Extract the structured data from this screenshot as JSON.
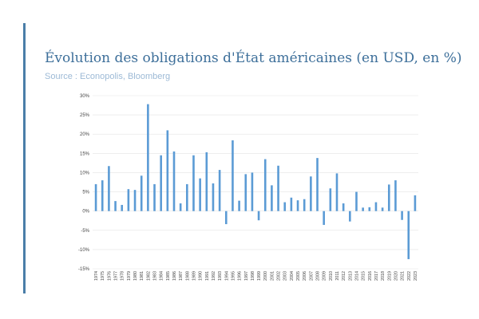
{
  "header": {
    "title": "Évolution des obligations d'État américaines (en USD, en %)",
    "subtitle": "Source : Econopolis, Bloomberg"
  },
  "colors": {
    "accent": "#4a7ea8",
    "title": "#3d6f9a",
    "subtitle": "#9dbad6",
    "bar": "#5b9bd5",
    "grid": "#e3e3e3",
    "tick_text": "#444444"
  },
  "chart_data": {
    "type": "bar",
    "title": "",
    "xlabel": "",
    "ylabel": "",
    "ylim": [
      -15,
      30
    ],
    "yticks": [
      30,
      25,
      20,
      15,
      10,
      5,
      0,
      -5,
      -10,
      -15
    ],
    "ytick_labels": [
      "30%",
      "25%",
      "20%",
      "15%",
      "10%",
      "5%",
      "0%",
      "-5%",
      "-10%",
      "-15%"
    ],
    "grid": true,
    "legend": "none",
    "categories": [
      "1974",
      "1975",
      "1976",
      "1977",
      "1978",
      "1979",
      "1980",
      "1981",
      "1982",
      "1983",
      "1984",
      "1985",
      "1986",
      "1987",
      "1988",
      "1989",
      "1990",
      "1991",
      "1992",
      "1993",
      "1994",
      "1995",
      "1996",
      "1997",
      "1998",
      "1999",
      "2000",
      "2001",
      "2002",
      "2003",
      "2004",
      "2005",
      "2006",
      "2007",
      "2008",
      "2009",
      "2010",
      "2011",
      "2012",
      "2013",
      "2014",
      "2015",
      "2016",
      "2017",
      "2018",
      "2019",
      "2020",
      "2021",
      "2022",
      "2023"
    ],
    "values": [
      7.0,
      8.0,
      11.7,
      2.6,
      1.6,
      5.7,
      5.5,
      9.2,
      27.8,
      7.0,
      14.5,
      21.0,
      15.5,
      2.0,
      7.0,
      14.5,
      8.5,
      15.3,
      7.2,
      10.7,
      -3.4,
      18.4,
      2.7,
      9.6,
      10.0,
      -2.4,
      13.5,
      6.7,
      11.8,
      2.3,
      3.5,
      2.8,
      3.1,
      9.0,
      13.8,
      -3.6,
      5.9,
      9.8,
      2.0,
      -2.7,
      5.0,
      0.9,
      1.0,
      2.3,
      0.9,
      6.9,
      8.0,
      -2.3,
      -12.5,
      4.1
    ]
  }
}
